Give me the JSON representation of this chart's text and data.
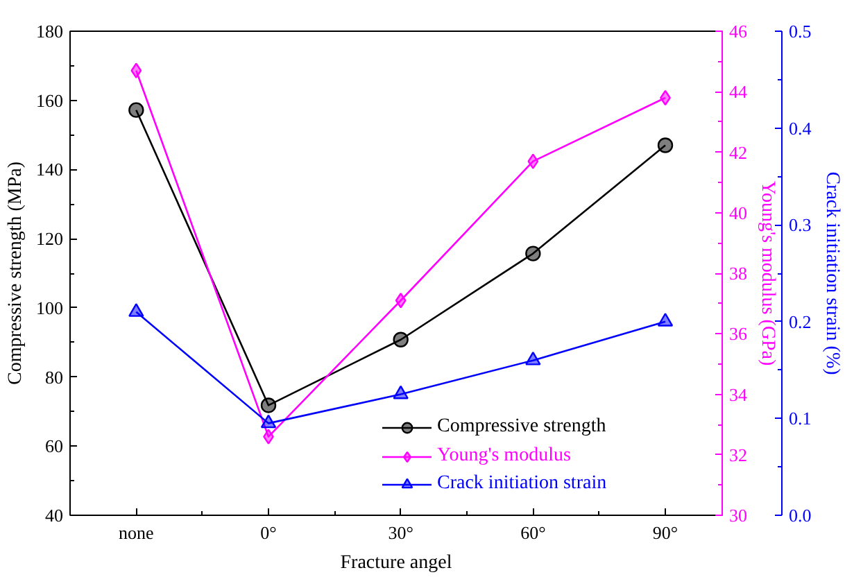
{
  "chart_data": {
    "type": "line",
    "categories": [
      "none",
      "0°",
      "30°",
      "60°",
      "90°"
    ],
    "xlabel": "Fracture angel",
    "ylabel": "Compressive strength (MPa)",
    "y2label": "Young's modulus (GPa)",
    "y3label": "Crack initiation strain (%)",
    "ylim": [
      40,
      180
    ],
    "yticks": [
      40,
      60,
      80,
      100,
      120,
      140,
      160,
      180
    ],
    "y2lim": [
      30,
      46
    ],
    "y2ticks": [
      30,
      32,
      34,
      36,
      38,
      40,
      42,
      44,
      46
    ],
    "y3lim": [
      0,
      0.5
    ],
    "y3ticks": [
      {
        "value": 0,
        "label": "0.0"
      },
      0.1,
      0.2,
      0.3,
      0.4,
      0.5
    ],
    "legend": "bottom right",
    "line_style": "solid",
    "series": [
      {
        "name": "Compressive strength",
        "color": "#000000",
        "marker": "circle",
        "values": [
          157.2,
          71.8,
          90.8,
          115.7,
          147
        ]
      },
      {
        "name": "Young's modulus",
        "color": "#ff00ff",
        "marker": "diamond",
        "axis": "y2",
        "values": [
          44.7,
          32.6,
          37.1,
          41.7,
          43.8
        ]
      },
      {
        "name": "Crack initiation strain",
        "color": "#0000ff",
        "marker": "triangle",
        "axis": "y3",
        "values": [
          0.21,
          0.095,
          0.125,
          0.16,
          0.2
        ]
      }
    ]
  }
}
